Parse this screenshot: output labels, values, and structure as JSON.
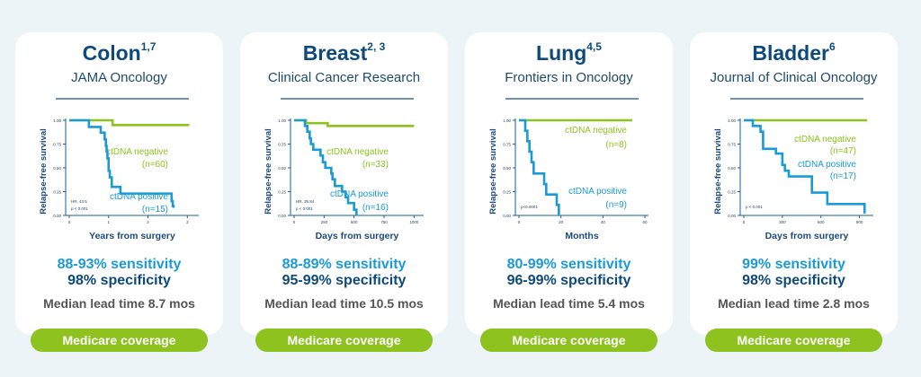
{
  "colors": {
    "positive": "#1a9ad6",
    "negative": "#8dc21f",
    "dark": "#0d4a7c"
  },
  "cards": [
    {
      "title": "Colon",
      "sup": "1,7",
      "journal": "JAMA Oncology",
      "sensitivity": "88-93% sensitivity",
      "specificity": "98% specificity",
      "lead_time": "Median lead time 8.7 mos",
      "button": "Medicare coverage"
    },
    {
      "title": "Breast",
      "sup": "2, 3",
      "journal": "Clinical Cancer Research",
      "sensitivity": "88-89% sensitivity",
      "specificity": "95-99% specificity",
      "lead_time": "Median lead time 10.5 mos",
      "button": "Medicare coverage"
    },
    {
      "title": "Lung",
      "sup": "4,5",
      "journal": "Frontiers in Oncology",
      "sensitivity": "80-99% sensitivity",
      "specificity": "96-99% specificity",
      "lead_time": "Median lead time 5.4 mos",
      "button": "Medicare coverage"
    },
    {
      "title": "Bladder",
      "sup": "6",
      "journal": "Journal of Clinical Oncology",
      "sensitivity": "99% sensitivity",
      "specificity": "98% specificity",
      "lead_time": "Median lead time 2.8 mos",
      "button": "Medicare coverage"
    }
  ],
  "chart_data": [
    {
      "type": "line",
      "xlabel": "Years from surgery",
      "ylabel": "Relapse-free survival",
      "xlim": [
        0,
        3.2
      ],
      "ylim": [
        0,
        1
      ],
      "xticks": [
        "0",
        "1",
        "2",
        "3"
      ],
      "xtick_values": [
        0,
        1,
        2,
        3
      ],
      "yticks": [
        "0.00",
        "0.25",
        "0.50",
        "0.75",
        "1.00"
      ],
      "annotation": [
        "HR, 43.5",
        "p < 0.001"
      ],
      "series": [
        {
          "name": "ctDNA negative",
          "n": "(n=60)",
          "x": [
            0,
            1.05,
            1.1,
            3.05
          ],
          "y": [
            1,
            1,
            0.95,
            0.95
          ]
        },
        {
          "name": "ctDNA positive",
          "n": "(n=15)",
          "x": [
            0,
            0.5,
            0.8,
            0.9,
            0.93,
            0.95,
            0.97,
            1.0,
            1.03,
            1.08,
            1.3,
            2.6,
            2.63,
            2.65
          ],
          "y": [
            1,
            0.93,
            0.87,
            0.8,
            0.73,
            0.67,
            0.6,
            0.47,
            0.4,
            0.3,
            0.23,
            0.15,
            0.1,
            0.08
          ]
        }
      ]
    },
    {
      "type": "line",
      "xlabel": "Days from surgery",
      "ylabel": "Relapse-free survival",
      "xlim": [
        0,
        1050
      ],
      "ylim": [
        0,
        1
      ],
      "xticks": [
        "0",
        "250",
        "500",
        "750",
        "1000"
      ],
      "xtick_values": [
        0,
        250,
        500,
        750,
        1000
      ],
      "yticks": [
        "0.00",
        "0.25",
        "0.50",
        "0.75",
        "1.00"
      ],
      "annotation": [
        "HR, 35.84",
        "p < 0.001"
      ],
      "series": [
        {
          "name": "ctDNA negative",
          "n": "(n=33)",
          "x": [
            0,
            100,
            280,
            1000
          ],
          "y": [
            1,
            0.97,
            0.94,
            0.94
          ]
        },
        {
          "name": "ctDNA positive",
          "n": "(n=16)",
          "x": [
            0,
            90,
            110,
            130,
            140,
            160,
            220,
            240,
            260,
            310,
            320,
            340,
            400,
            430,
            450,
            500,
            520
          ],
          "y": [
            1,
            0.94,
            0.88,
            0.81,
            0.75,
            0.69,
            0.63,
            0.56,
            0.5,
            0.44,
            0.38,
            0.31,
            0.25,
            0.19,
            0.13,
            0.06,
            0
          ]
        }
      ]
    },
    {
      "type": "line",
      "xlabel": "Months",
      "ylabel": "Relapse-free survival",
      "xlim": [
        0,
        60
      ],
      "ylim": [
        0,
        1
      ],
      "xticks": [
        "0",
        "20",
        "40",
        "60"
      ],
      "xtick_values": [
        0,
        20,
        40,
        60
      ],
      "yticks": [
        "0.00",
        "0.25",
        "0.50",
        "0.75",
        "1.00"
      ],
      "annotation": [
        "p<0.0001"
      ],
      "series": [
        {
          "name": "ctDNA negative",
          "n": "(n=8)",
          "x": [
            0,
            54
          ],
          "y": [
            1,
            1
          ]
        },
        {
          "name": "ctDNA positive",
          "n": "(n=9)",
          "x": [
            0,
            3,
            4,
            5,
            6,
            7,
            12,
            13,
            18,
            19
          ],
          "y": [
            1,
            0.89,
            0.78,
            0.67,
            0.56,
            0.44,
            0.33,
            0.22,
            0.11,
            0
          ]
        }
      ]
    },
    {
      "type": "line",
      "xlabel": "Days from surgery",
      "ylabel": "Relapse-free survival",
      "xlim": [
        0,
        980
      ],
      "ylim": [
        0,
        1
      ],
      "xticks": [
        "0",
        "300",
        "600",
        "900"
      ],
      "xtick_values": [
        0,
        300,
        600,
        900
      ],
      "yticks": [
        "0.00",
        "0.25",
        "0.50",
        "0.75",
        "1.00"
      ],
      "annotation": [
        "p < 0.001"
      ],
      "series": [
        {
          "name": "ctDNA negative",
          "n": "(n=47)",
          "x": [
            0,
            960
          ],
          "y": [
            1,
            1
          ]
        },
        {
          "name": "ctDNA positive",
          "n": "(n=17)",
          "x": [
            0,
            70,
            130,
            150,
            250,
            300,
            320,
            350,
            530,
            650,
            940
          ],
          "y": [
            1,
            0.94,
            0.88,
            0.7,
            0.65,
            0.53,
            0.47,
            0.41,
            0.24,
            0.12,
            0.02
          ]
        }
      ]
    }
  ]
}
